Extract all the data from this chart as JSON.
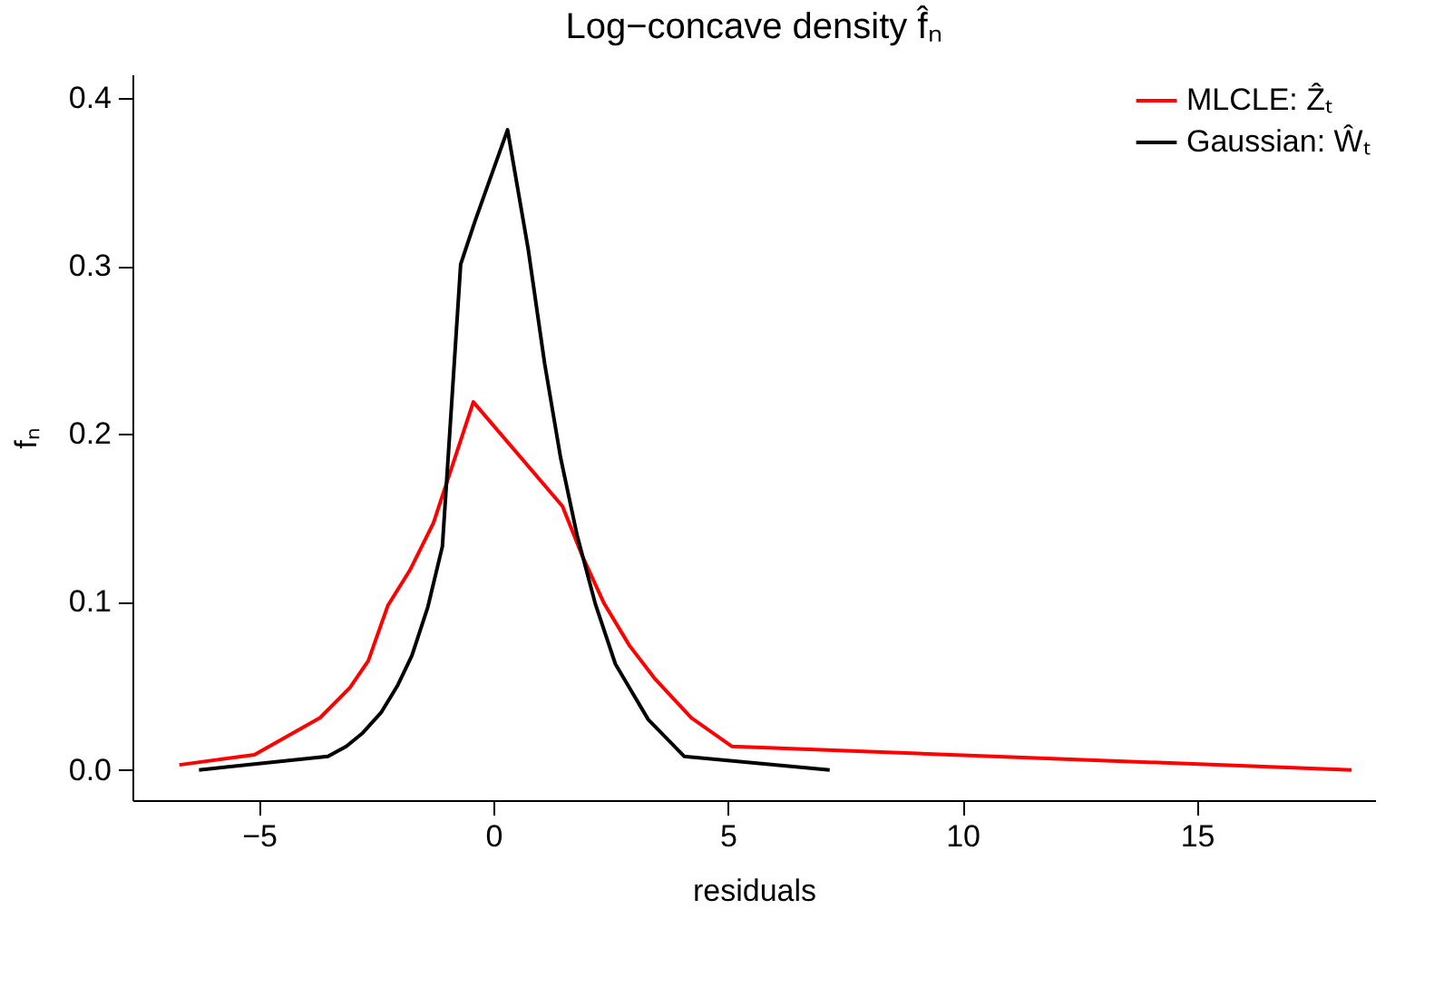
{
  "chart_data": {
    "type": "line",
    "title": "Log−concave density f̂ₙ",
    "xlabel": "residuals",
    "ylabel": "fₙ",
    "xlim": [
      -7.7,
      18.8
    ],
    "ylim": [
      -0.018,
      0.414
    ],
    "xticks": [
      {
        "value": -5,
        "label": "−5"
      },
      0,
      5,
      10,
      15
    ],
    "yticks": [
      {
        "value": 0,
        "label": "0.0"
      },
      0.1,
      0.2,
      0.3,
      0.4
    ],
    "grid": false,
    "legend": "top right",
    "marker": "none",
    "line_style": "solid",
    "series": [
      {
        "name": "MLCLE: Ẑₜ",
        "color": "#ff0000",
        "x": [
          -6.7,
          -5.1,
          -3.7,
          -3.06,
          -2.67,
          -2.25,
          -1.78,
          -1.28,
          -0.43,
          1.47,
          1.9,
          2.36,
          2.9,
          3.45,
          4.22,
          5.08,
          18.3
        ],
        "values": [
          0.003,
          0.009,
          0.031,
          0.049,
          0.065,
          0.098,
          0.119,
          0.147,
          0.219,
          0.157,
          0.127,
          0.099,
          0.074,
          0.054,
          0.031,
          0.014,
          0.0
        ]
      },
      {
        "name": "Gaussian: Ŵₜ",
        "color": "#000000",
        "x": [
          -6.28,
          -3.53,
          -3.14,
          -2.79,
          -2.4,
          -2.05,
          -1.74,
          -1.4,
          -1.09,
          -0.7,
          -0.39,
          0.3,
          0.74,
          1.09,
          1.43,
          1.78,
          2.17,
          2.6,
          3.3,
          4.07,
          7.17
        ],
        "values": [
          0.0,
          0.008,
          0.014,
          0.022,
          0.034,
          0.05,
          0.068,
          0.097,
          0.133,
          0.301,
          0.327,
          0.381,
          0.31,
          0.242,
          0.186,
          0.14,
          0.099,
          0.063,
          0.03,
          0.008,
          0.0
        ]
      }
    ]
  }
}
